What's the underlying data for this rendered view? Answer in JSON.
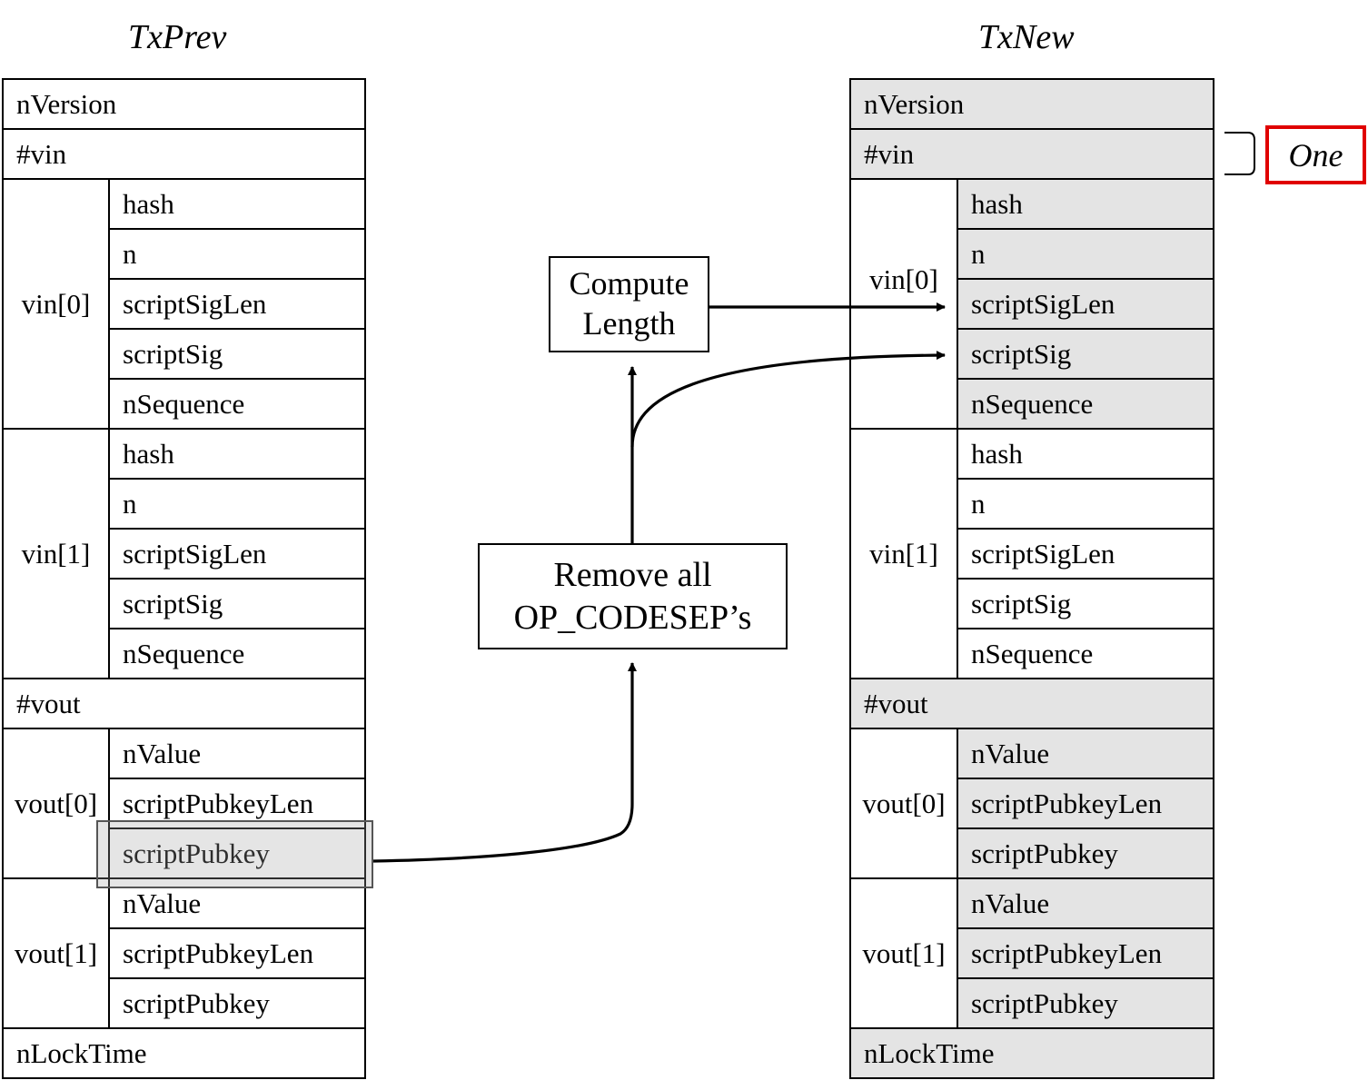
{
  "titles": {
    "left": "TxPrev",
    "right": "TxNew"
  },
  "fields": {
    "nVersion": "nVersion",
    "vin_count": "#vin",
    "vout_count": "#vout",
    "nLockTime": "nLockTime",
    "hash": "hash",
    "n": "n",
    "scriptSigLen": "scriptSigLen",
    "scriptSig": "scriptSig",
    "nSequence": "nSequence",
    "nValue": "nValue",
    "scriptPubkeyLen": "scriptPubkeyLen",
    "scriptPubkey": "scriptPubkey"
  },
  "groups": {
    "vin0": "vin[0]",
    "vin1": "vin[1]",
    "vout0": "vout[0]",
    "vout1": "vout[1]"
  },
  "process": {
    "compute_line1": "Compute",
    "compute_line2": "Length",
    "remove_line1": "Remove all",
    "remove_line2": "OP_CODESEP’s"
  },
  "annotation": {
    "vin_count_value": "One"
  },
  "colors": {
    "highlight_border": "#e00000",
    "shaded_fill": "#e4e4e4"
  }
}
